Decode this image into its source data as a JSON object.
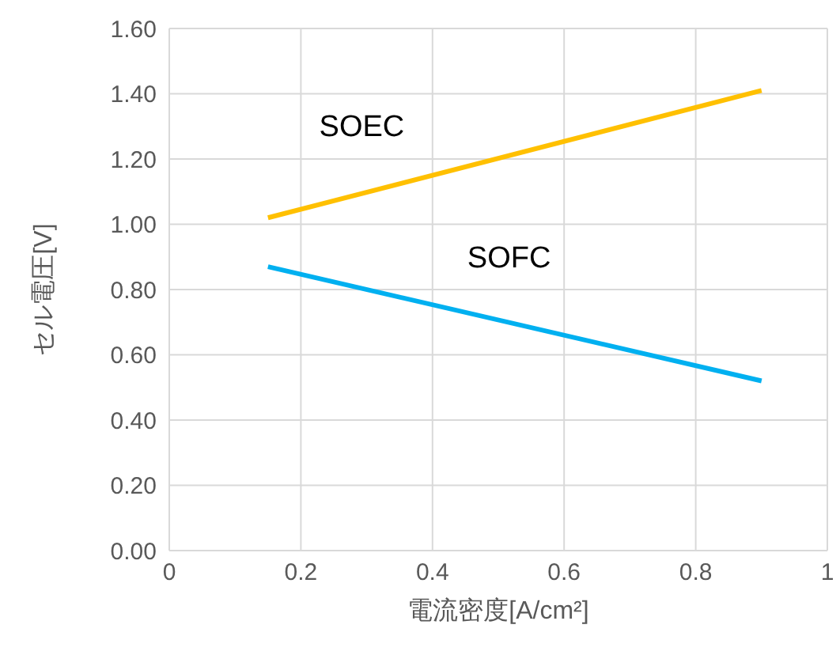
{
  "chart_data": {
    "type": "line",
    "xlabel": "電流密度[A/cm²]",
    "ylabel": "セル電圧[V]",
    "xlim": [
      0,
      1
    ],
    "xticks": [
      0,
      0.2,
      0.4,
      0.6,
      0.8,
      1
    ],
    "ylim": [
      0,
      1.6
    ],
    "yticks": [
      {
        "value": 0,
        "label": "0.00"
      },
      {
        "value": 0.2,
        "label": "0.20"
      },
      {
        "value": 0.4,
        "label": "0.40"
      },
      {
        "value": 0.6,
        "label": "0.60"
      },
      {
        "value": 0.8,
        "label": "0.80"
      },
      {
        "value": 1,
        "label": "1.00"
      },
      {
        "value": 1.2,
        "label": "1.20"
      },
      {
        "value": 1.4,
        "label": "1.40"
      },
      {
        "value": 1.6,
        "label": "1.60"
      }
    ],
    "x": [
      0.15,
      0.9
    ],
    "grid": true,
    "marker": "none",
    "legend": false,
    "series": [
      {
        "name": "SOEC",
        "color": "#ffc000",
        "values": [
          1.02,
          1.41
        ]
      },
      {
        "name": "SOFC",
        "color": "#00b0f0",
        "values": [
          0.87,
          0.52
        ]
      }
    ]
  }
}
